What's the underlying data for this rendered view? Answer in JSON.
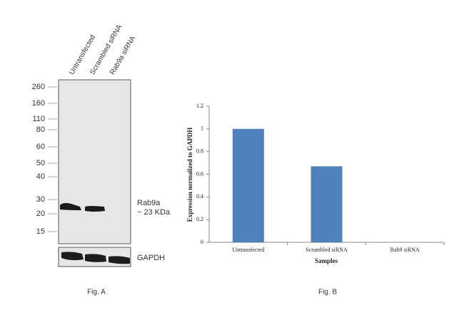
{
  "blot": {
    "lanes": [
      "Untransfected",
      "Scrambled siRNA",
      "Rab9a siRNA"
    ],
    "markers": [
      260,
      160,
      110,
      80,
      60,
      50,
      40,
      30,
      20,
      15
    ],
    "band_label": "Rab9a",
    "band_size": "~ 23 KDa",
    "control_label": "GAPDH",
    "caption": "Fig. A"
  },
  "chart_data": {
    "type": "bar",
    "caption": "Fig. B",
    "x_label": "Samples",
    "y_label": "Expression normalized to GAPDH",
    "categories": [
      "Untransfected",
      "Scrambled siRNA",
      "Rab9 siRNA"
    ],
    "values": [
      1,
      0.67,
      0
    ],
    "color": "#4f81bd",
    "ylim": [
      0,
      1.2
    ],
    "yticks": [
      0,
      0.2,
      0.4,
      0.6,
      0.8,
      1,
      1.2
    ]
  }
}
